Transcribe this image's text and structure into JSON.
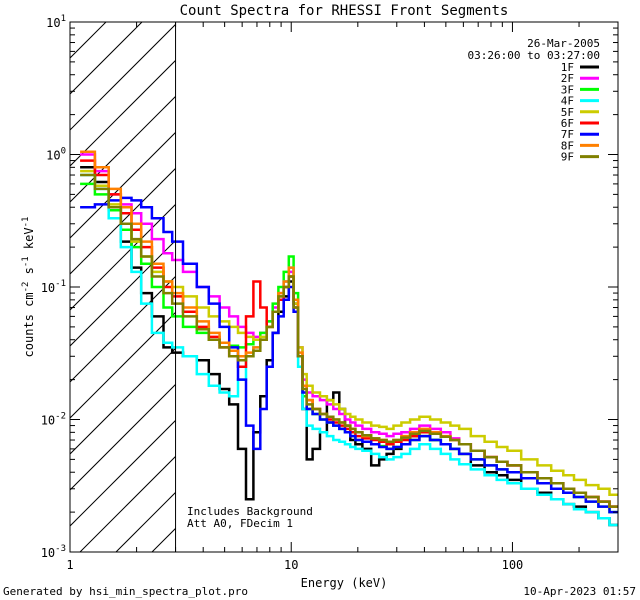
{
  "chart_data": {
    "type": "line",
    "title": "Count Spectra for RHESSI Front Segments",
    "xlabel": "Energy (keV)",
    "ylabel": {
      "base": "counts cm",
      "exp1": "-2",
      "mid1": " s",
      "exp2": "-1",
      "mid2": " keV",
      "exp3": "-1"
    },
    "xscale": "log",
    "yscale": "log",
    "xlim": [
      1,
      300
    ],
    "ylim": [
      0.001,
      10
    ],
    "x_ticks": [
      {
        "value": 1,
        "label": "1"
      },
      {
        "value": 10,
        "label": "10"
      },
      {
        "value": 100,
        "label": "100"
      }
    ],
    "y_ticks": [
      {
        "value": 0.001,
        "base": "10",
        "exp": "-3"
      },
      {
        "value": 0.01,
        "base": "10",
        "exp": "-2"
      },
      {
        "value": 0.1,
        "base": "10",
        "exp": "-1"
      },
      {
        "value": 1,
        "base": "10",
        "exp": "0"
      },
      {
        "value": 10,
        "base": "10",
        "exp": "1"
      }
    ],
    "hatched_region": {
      "xmin": 1,
      "xmax": 3,
      "boundary_line_at": 3
    },
    "annotation_top_right": [
      "26-Mar-2005",
      "03:26:00 to 03:27:00"
    ],
    "annotation_bottom": [
      "Includes Background",
      "Att A0, FDecim 1"
    ],
    "legend_position": "top-right",
    "series": [
      {
        "name": "1F",
        "color": "#000000",
        "x": [
          1.2,
          1.4,
          1.6,
          1.8,
          2,
          2.2,
          2.5,
          2.8,
          3,
          3.5,
          4,
          4.5,
          5,
          5.5,
          6,
          6.5,
          7,
          7.5,
          8,
          8.5,
          9,
          9.5,
          10,
          10.5,
          11,
          11.5,
          12,
          13,
          14,
          15,
          16,
          17,
          18,
          19,
          20,
          22,
          24,
          26,
          28,
          30,
          33,
          36,
          40,
          45,
          50,
          55,
          60,
          70,
          80,
          90,
          100,
          120,
          140,
          160,
          180,
          200,
          230,
          260,
          290
        ],
        "y": [
          0.8,
          0.62,
          0.4,
          0.22,
          0.14,
          0.09,
          0.06,
          0.035,
          0.032,
          0.03,
          0.028,
          0.022,
          0.017,
          0.013,
          0.006,
          0.0025,
          0.008,
          0.015,
          0.028,
          0.045,
          0.065,
          0.085,
          0.11,
          0.075,
          0.03,
          0.012,
          0.005,
          0.006,
          0.008,
          0.014,
          0.016,
          0.012,
          0.009,
          0.007,
          0.0065,
          0.006,
          0.0045,
          0.005,
          0.0055,
          0.006,
          0.0065,
          0.0075,
          0.008,
          0.007,
          0.0065,
          0.006,
          0.0055,
          0.0045,
          0.004,
          0.0038,
          0.0035,
          0.003,
          0.0028,
          0.0025,
          0.0023,
          0.0022,
          0.002,
          0.0018,
          0.0016
        ]
      },
      {
        "name": "2F",
        "color": "#ff00ff",
        "x": [
          1.2,
          1.4,
          1.6,
          1.8,
          2,
          2.2,
          2.5,
          2.8,
          3,
          3.5,
          4,
          4.5,
          5,
          5.5,
          6,
          6.5,
          7,
          7.5,
          8,
          8.5,
          9,
          9.5,
          10,
          10.5,
          11,
          11.5,
          12,
          13,
          14,
          15,
          16,
          17,
          18,
          19,
          20,
          22,
          24,
          26,
          28,
          30,
          33,
          36,
          40,
          45,
          50,
          55,
          60,
          70,
          80,
          90,
          100,
          120,
          140,
          160,
          180,
          200,
          230,
          260,
          290
        ],
        "y": [
          1.0,
          0.75,
          0.5,
          0.42,
          0.36,
          0.3,
          0.23,
          0.18,
          0.16,
          0.13,
          0.1,
          0.085,
          0.07,
          0.06,
          0.05,
          0.045,
          0.042,
          0.045,
          0.055,
          0.07,
          0.09,
          0.11,
          0.13,
          0.08,
          0.035,
          0.02,
          0.016,
          0.015,
          0.014,
          0.013,
          0.012,
          0.011,
          0.01,
          0.0095,
          0.009,
          0.0085,
          0.008,
          0.0078,
          0.0075,
          0.0078,
          0.008,
          0.0085,
          0.009,
          0.0085,
          0.008,
          0.0072,
          0.0065,
          0.0058,
          0.0052,
          0.0048,
          0.0045,
          0.004,
          0.0036,
          0.0033,
          0.003,
          0.0028,
          0.0026,
          0.0024,
          0.0022
        ]
      },
      {
        "name": "3F",
        "color": "#00ff00",
        "x": [
          1.2,
          1.4,
          1.6,
          1.8,
          2,
          2.2,
          2.5,
          2.8,
          3,
          3.5,
          4,
          4.5,
          5,
          5.5,
          6,
          6.5,
          7,
          7.5,
          8,
          8.5,
          9,
          9.5,
          10,
          10.5,
          11,
          11.5,
          12,
          13,
          14,
          15,
          16,
          17,
          18,
          19,
          20,
          22,
          24,
          26,
          28,
          30,
          33,
          36,
          40,
          45,
          50,
          55,
          60,
          70,
          80,
          90,
          100,
          120,
          140,
          160,
          180,
          200,
          230,
          260,
          290
        ],
        "y": [
          0.6,
          0.5,
          0.38,
          0.27,
          0.2,
          0.15,
          0.1,
          0.07,
          0.06,
          0.05,
          0.045,
          0.04,
          0.038,
          0.036,
          0.035,
          0.037,
          0.04,
          0.045,
          0.055,
          0.075,
          0.1,
          0.13,
          0.17,
          0.09,
          0.03,
          0.015,
          0.012,
          0.011,
          0.01,
          0.0095,
          0.009,
          0.0085,
          0.008,
          0.0075,
          0.007,
          0.0068,
          0.0065,
          0.0063,
          0.006,
          0.0062,
          0.0065,
          0.007,
          0.0075,
          0.007,
          0.0065,
          0.006,
          0.0055,
          0.005,
          0.0045,
          0.0042,
          0.004,
          0.0036,
          0.0033,
          0.003,
          0.0028,
          0.0026,
          0.0024,
          0.0022,
          0.002
        ]
      },
      {
        "name": "4F",
        "color": "#00ffff",
        "x": [
          1.2,
          1.4,
          1.6,
          1.8,
          2,
          2.2,
          2.5,
          2.8,
          3,
          3.5,
          4,
          4.5,
          5,
          5.5,
          6,
          6.5,
          7,
          7.5,
          8,
          8.5,
          9,
          9.5,
          10,
          10.5,
          11,
          11.5,
          12,
          13,
          14,
          15,
          16,
          17,
          18,
          19,
          20,
          22,
          24,
          26,
          28,
          30,
          33,
          36,
          40,
          45,
          50,
          55,
          60,
          70,
          80,
          90,
          100,
          120,
          140,
          160,
          180,
          200,
          230,
          260,
          290
        ],
        "y": [
          0.7,
          0.55,
          0.33,
          0.2,
          0.13,
          0.075,
          0.045,
          0.038,
          0.035,
          0.03,
          0.022,
          0.018,
          0.016,
          0.015,
          0.02,
          0.03,
          0.035,
          0.04,
          0.05,
          0.065,
          0.085,
          0.11,
          0.14,
          0.07,
          0.025,
          0.012,
          0.009,
          0.0085,
          0.008,
          0.0075,
          0.007,
          0.0068,
          0.0065,
          0.0062,
          0.006,
          0.0058,
          0.0055,
          0.0052,
          0.005,
          0.0052,
          0.0055,
          0.006,
          0.0065,
          0.006,
          0.0055,
          0.005,
          0.0046,
          0.0042,
          0.0038,
          0.0035,
          0.0033,
          0.003,
          0.0027,
          0.0025,
          0.0023,
          0.0021,
          0.002,
          0.0018,
          0.0016
        ]
      },
      {
        "name": "5F",
        "color": "#cccc00",
        "x": [
          1.2,
          1.4,
          1.6,
          1.8,
          2,
          2.2,
          2.5,
          2.8,
          3,
          3.5,
          4,
          4.5,
          5,
          5.5,
          6,
          6.5,
          7,
          7.5,
          8,
          8.5,
          9,
          9.5,
          10,
          10.5,
          11,
          11.5,
          12,
          13,
          14,
          15,
          16,
          17,
          18,
          19,
          20,
          22,
          24,
          26,
          28,
          30,
          33,
          36,
          40,
          45,
          50,
          55,
          60,
          70,
          80,
          90,
          100,
          120,
          140,
          160,
          180,
          200,
          230,
          260,
          290
        ],
        "y": [
          0.75,
          0.58,
          0.42,
          0.3,
          0.22,
          0.17,
          0.13,
          0.11,
          0.1,
          0.085,
          0.07,
          0.06,
          0.055,
          0.05,
          0.045,
          0.042,
          0.04,
          0.042,
          0.05,
          0.065,
          0.085,
          0.1,
          0.12,
          0.075,
          0.035,
          0.022,
          0.018,
          0.016,
          0.015,
          0.014,
          0.013,
          0.012,
          0.011,
          0.0105,
          0.01,
          0.0095,
          0.009,
          0.0088,
          0.0085,
          0.009,
          0.0095,
          0.01,
          0.0105,
          0.01,
          0.0095,
          0.009,
          0.0085,
          0.0075,
          0.0068,
          0.0062,
          0.0058,
          0.005,
          0.0045,
          0.0041,
          0.0038,
          0.0035,
          0.0032,
          0.003,
          0.0027
        ]
      },
      {
        "name": "6F",
        "color": "#ff0000",
        "x": [
          1.2,
          1.4,
          1.6,
          1.8,
          2,
          2.2,
          2.5,
          2.8,
          3,
          3.5,
          4,
          4.5,
          5,
          5.5,
          6,
          6.5,
          7,
          7.5,
          8,
          8.5,
          9,
          9.5,
          10,
          10.5,
          11,
          11.5,
          12,
          13,
          14,
          15,
          16,
          17,
          18,
          19,
          20,
          22,
          24,
          26,
          28,
          30,
          33,
          36,
          40,
          45,
          50,
          55,
          60,
          70,
          80,
          90,
          100,
          120,
          140,
          160,
          180,
          200,
          230,
          260,
          290
        ],
        "y": [
          0.9,
          0.7,
          0.5,
          0.36,
          0.27,
          0.2,
          0.14,
          0.1,
          0.085,
          0.065,
          0.05,
          0.042,
          0.035,
          0.03,
          0.025,
          0.06,
          0.11,
          0.07,
          0.05,
          0.065,
          0.08,
          0.1,
          0.12,
          0.07,
          0.03,
          0.018,
          0.014,
          0.012,
          0.011,
          0.01,
          0.0095,
          0.009,
          0.0085,
          0.008,
          0.0075,
          0.0072,
          0.007,
          0.0068,
          0.0065,
          0.0068,
          0.007,
          0.0075,
          0.008,
          0.0078,
          0.0074,
          0.007,
          0.0065,
          0.0058,
          0.0052,
          0.0048,
          0.0045,
          0.004,
          0.0036,
          0.0033,
          0.003,
          0.0028,
          0.0026,
          0.0024,
          0.0022
        ]
      },
      {
        "name": "7F",
        "color": "#0000ff",
        "x": [
          1.2,
          1.4,
          1.6,
          1.8,
          2,
          2.2,
          2.5,
          2.8,
          3,
          3.5,
          4,
          4.5,
          5,
          5.5,
          6,
          6.5,
          7,
          7.5,
          8,
          8.5,
          9,
          9.5,
          10,
          10.5,
          11,
          11.5,
          12,
          13,
          14,
          15,
          16,
          17,
          18,
          19,
          20,
          22,
          24,
          26,
          28,
          30,
          33,
          36,
          40,
          45,
          50,
          55,
          60,
          70,
          80,
          90,
          100,
          120,
          140,
          160,
          180,
          200,
          230,
          260,
          290
        ],
        "y": [
          0.4,
          0.42,
          0.45,
          0.47,
          0.45,
          0.4,
          0.33,
          0.26,
          0.22,
          0.15,
          0.1,
          0.075,
          0.05,
          0.035,
          0.02,
          0.009,
          0.006,
          0.012,
          0.025,
          0.045,
          0.06,
          0.08,
          0.1,
          0.065,
          0.03,
          0.016,
          0.012,
          0.011,
          0.01,
          0.0095,
          0.009,
          0.0085,
          0.008,
          0.0075,
          0.007,
          0.0068,
          0.0065,
          0.0062,
          0.006,
          0.0062,
          0.0065,
          0.007,
          0.0075,
          0.007,
          0.0065,
          0.006,
          0.0055,
          0.005,
          0.0045,
          0.0042,
          0.004,
          0.0036,
          0.0033,
          0.003,
          0.0028,
          0.0026,
          0.0024,
          0.0022,
          0.002
        ]
      },
      {
        "name": "8F",
        "color": "#ff8000",
        "x": [
          1.2,
          1.4,
          1.6,
          1.8,
          2,
          2.2,
          2.5,
          2.8,
          3,
          3.5,
          4,
          4.5,
          5,
          5.5,
          6,
          6.5,
          7,
          7.5,
          8,
          8.5,
          9,
          9.5,
          10,
          10.5,
          11,
          11.5,
          12,
          13,
          14,
          15,
          16,
          17,
          18,
          19,
          20,
          22,
          24,
          26,
          28,
          30,
          33,
          36,
          40,
          45,
          50,
          55,
          60,
          70,
          80,
          90,
          100,
          120,
          140,
          160,
          180,
          200,
          230,
          260,
          290
        ],
        "y": [
          1.05,
          0.8,
          0.55,
          0.4,
          0.3,
          0.22,
          0.15,
          0.11,
          0.09,
          0.07,
          0.055,
          0.045,
          0.038,
          0.033,
          0.03,
          0.032,
          0.035,
          0.04,
          0.05,
          0.065,
          0.09,
          0.11,
          0.14,
          0.08,
          0.032,
          0.018,
          0.014,
          0.012,
          0.011,
          0.0105,
          0.01,
          0.0095,
          0.009,
          0.0085,
          0.008,
          0.0075,
          0.0072,
          0.007,
          0.0068,
          0.007,
          0.0075,
          0.008,
          0.0085,
          0.008,
          0.0075,
          0.007,
          0.0065,
          0.0058,
          0.0052,
          0.0048,
          0.0045,
          0.004,
          0.0036,
          0.0033,
          0.003,
          0.0028,
          0.0026,
          0.0024,
          0.0022
        ]
      },
      {
        "name": "9F",
        "color": "#808000",
        "x": [
          1.2,
          1.4,
          1.6,
          1.8,
          2,
          2.2,
          2.5,
          2.8,
          3,
          3.5,
          4,
          4.5,
          5,
          5.5,
          6,
          6.5,
          7,
          7.5,
          8,
          8.5,
          9,
          9.5,
          10,
          10.5,
          11,
          11.5,
          12,
          13,
          14,
          15,
          16,
          17,
          18,
          19,
          20,
          22,
          24,
          26,
          28,
          30,
          33,
          36,
          40,
          45,
          50,
          55,
          60,
          70,
          80,
          90,
          100,
          120,
          140,
          160,
          180,
          200,
          230,
          260,
          290
        ],
        "y": [
          0.7,
          0.55,
          0.4,
          0.3,
          0.23,
          0.17,
          0.12,
          0.09,
          0.075,
          0.06,
          0.048,
          0.04,
          0.035,
          0.03,
          0.028,
          0.03,
          0.033,
          0.04,
          0.05,
          0.065,
          0.085,
          0.1,
          0.12,
          0.07,
          0.03,
          0.017,
          0.013,
          0.012,
          0.011,
          0.0105,
          0.01,
          0.0095,
          0.009,
          0.0085,
          0.008,
          0.0076,
          0.0072,
          0.007,
          0.0068,
          0.007,
          0.0073,
          0.0078,
          0.0082,
          0.0078,
          0.0074,
          0.007,
          0.0065,
          0.0058,
          0.0052,
          0.0048,
          0.0045,
          0.004,
          0.0036,
          0.0033,
          0.003,
          0.0028,
          0.0026,
          0.0024,
          0.0022
        ]
      }
    ]
  },
  "footer": {
    "left": "Generated by hsi_min_spectra_plot.pro",
    "right": "10-Apr-2023 01:57"
  }
}
